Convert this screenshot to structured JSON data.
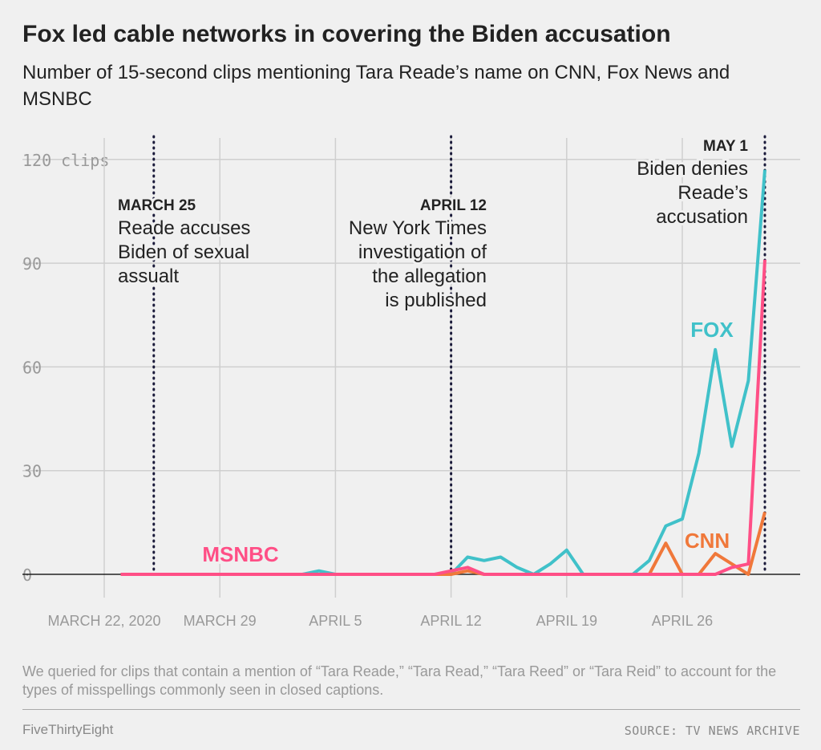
{
  "title": "Fox led cable networks in covering the Biden accusation",
  "subtitle": "Number of 15-second clips mentioning Tara Reade’s name on CNN, Fox News and MSNBC",
  "note": "We queried for clips that contain a mention of “Tara Reade,” “Tara Read,” “Tara Reed” or “Tara Reid” to account for the types of misspellings commonly seen in closed captions.",
  "brand": "FiveThirtyEight",
  "source": "SOURCE: TV NEWS ARCHIVE",
  "chart_data": {
    "type": "line",
    "ylabel_unit": "clips",
    "ylim": [
      0,
      120
    ],
    "yticks": [
      0,
      30,
      60,
      90,
      120
    ],
    "xticks": [
      {
        "date": "2020-03-22",
        "label": "MARCH 22, 2020"
      },
      {
        "date": "2020-03-29",
        "label": "MARCH 29"
      },
      {
        "date": "2020-04-05",
        "label": "APRIL 5"
      },
      {
        "date": "2020-04-12",
        "label": "APRIL 12"
      },
      {
        "date": "2020-04-19",
        "label": "APRIL 19"
      },
      {
        "date": "2020-04-26",
        "label": "APRIL 26"
      }
    ],
    "grid": true,
    "x": [
      "2020-03-23",
      "2020-03-24",
      "2020-03-25",
      "2020-03-26",
      "2020-03-27",
      "2020-03-28",
      "2020-03-29",
      "2020-03-30",
      "2020-03-31",
      "2020-04-01",
      "2020-04-02",
      "2020-04-03",
      "2020-04-04",
      "2020-04-05",
      "2020-04-06",
      "2020-04-07",
      "2020-04-08",
      "2020-04-09",
      "2020-04-10",
      "2020-04-11",
      "2020-04-12",
      "2020-04-13",
      "2020-04-14",
      "2020-04-15",
      "2020-04-16",
      "2020-04-17",
      "2020-04-18",
      "2020-04-19",
      "2020-04-20",
      "2020-04-21",
      "2020-04-22",
      "2020-04-23",
      "2020-04-24",
      "2020-04-25",
      "2020-04-26",
      "2020-04-27",
      "2020-04-28",
      "2020-04-29",
      "2020-04-30",
      "2020-05-01"
    ],
    "series": [
      {
        "name": "FOX",
        "color": "#40c1c9",
        "values": [
          0,
          0,
          0,
          0,
          0,
          0,
          0,
          0,
          0,
          0,
          0,
          0,
          1,
          0,
          0,
          0,
          0,
          0,
          0,
          0,
          0,
          5,
          4,
          5,
          2,
          0,
          3,
          7,
          0,
          0,
          0,
          0,
          4,
          14,
          16,
          35,
          65,
          37,
          56,
          117
        ]
      },
      {
        "name": "CNN",
        "color": "#f0783a",
        "values": [
          0,
          0,
          0,
          0,
          0,
          0,
          0,
          0,
          0,
          0,
          0,
          0,
          0,
          0,
          0,
          0,
          0,
          0,
          0,
          0,
          0,
          1,
          0,
          0,
          0,
          0,
          0,
          0,
          0,
          0,
          0,
          0,
          0,
          9,
          0,
          0,
          6,
          3,
          0,
          18
        ]
      },
      {
        "name": "MSNBC",
        "color": "#ff4f86",
        "values": [
          0,
          0,
          0,
          0,
          0,
          0,
          0,
          0,
          0,
          0,
          0,
          0,
          0,
          0,
          0,
          0,
          0,
          0,
          0,
          0,
          1,
          2,
          0,
          0,
          0,
          0,
          0,
          0,
          0,
          0,
          0,
          0,
          0,
          0,
          0,
          0,
          0,
          2,
          3,
          91
        ]
      }
    ],
    "annotations": [
      {
        "date": "2020-03-25",
        "heading": "MARCH 25",
        "lines": [
          "Reade accuses",
          "Biden of sexual",
          "assualt"
        ]
      },
      {
        "date": "2020-04-12",
        "heading": "APRIL 12",
        "lines": [
          "New York Times",
          "investigation of",
          "the allegation",
          "is published"
        ]
      },
      {
        "date": "2020-05-01",
        "heading": "MAY 1",
        "lines": [
          "Biden denies",
          "Reade’s",
          "accusation"
        ]
      }
    ]
  }
}
